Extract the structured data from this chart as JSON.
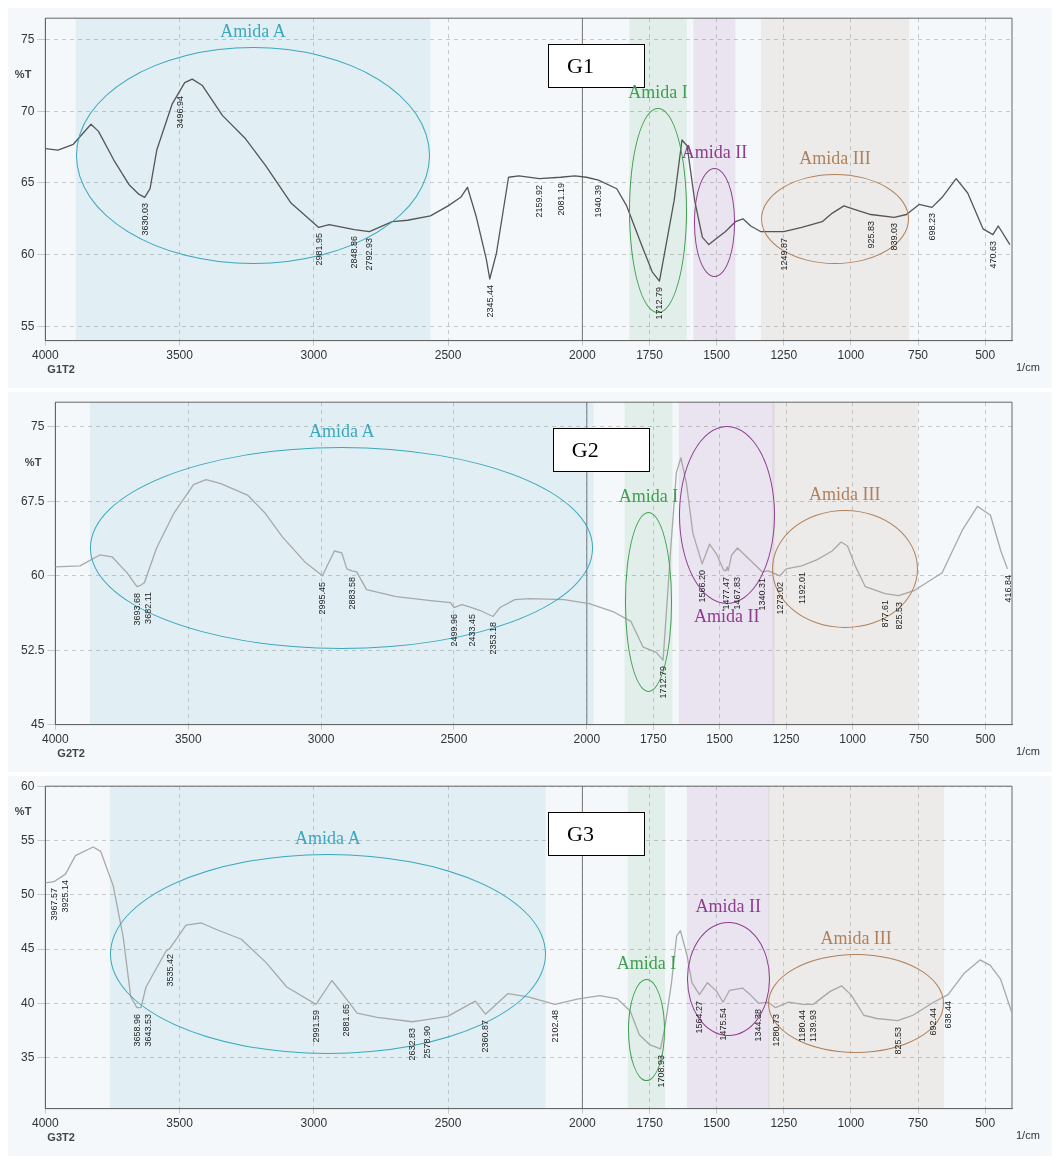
{
  "chart_data": [
    {
      "type": "line",
      "title": "G1",
      "subtitle": "G1T2",
      "xlabel": "1/cm",
      "ylabel": "%T",
      "xlim": [
        4000,
        400
      ],
      "xticks": [
        4000,
        3500,
        3000,
        2500,
        2000,
        1750,
        1500,
        1250,
        1000,
        750,
        500
      ],
      "ylim": [
        54,
        76.5
      ],
      "yticks": [
        55,
        60,
        65,
        70,
        75
      ],
      "grid": true,
      "x": [
        4000,
        3953,
        3896,
        3830,
        3802,
        3745,
        3689,
        3651,
        3630,
        3610,
        3585,
        3528,
        3481,
        3453,
        3415,
        3340,
        3255,
        3179,
        3085,
        2982,
        2943,
        2849,
        2793,
        2708,
        2651,
        2566,
        2500,
        2453,
        2428,
        2396,
        2358,
        2345,
        2320,
        2275,
        2236,
        2160,
        2081,
        2028,
        1985,
        1940,
        1872,
        1835,
        1778,
        1740,
        1713,
        1690,
        1658,
        1629,
        1610,
        1582,
        1553,
        1529,
        1496,
        1468,
        1430,
        1402,
        1373,
        1335,
        1297,
        1250,
        1183,
        1107,
        1069,
        1026,
        993,
        926,
        839,
        793,
        746,
        698,
        660,
        608,
        565,
        508,
        471,
        451,
        408
      ],
      "series": [
        {
          "color": "#555555",
          "values": [
            67.4,
            67.3,
            67.7,
            69.1,
            68.6,
            66.6,
            64.9,
            64.2,
            64.0,
            64.6,
            67.3,
            70.5,
            72.0,
            72.25,
            71.8,
            69.7,
            68.1,
            66.2,
            63.6,
            61.9,
            62.1,
            61.75,
            61.6,
            62.3,
            62.4,
            62.7,
            63.4,
            64.0,
            64.7,
            62.7,
            59.7,
            58.3,
            60.1,
            65.4,
            65.5,
            65.3,
            65.4,
            65.5,
            65.4,
            65.2,
            64.6,
            63.4,
            60.6,
            58.8,
            58.15,
            60.5,
            63.8,
            68.0,
            67.6,
            63.8,
            61.2,
            60.7,
            61.2,
            61.6,
            62.3,
            62.5,
            62.0,
            61.6,
            61.6,
            61.6,
            61.9,
            62.3,
            62.9,
            63.4,
            63.2,
            62.8,
            62.6,
            62.8,
            63.5,
            63.3,
            64.0,
            65.3,
            64.3,
            61.8,
            61.4,
            62.0,
            60.7
          ]
        }
      ],
      "ref_lines": [
        {
          "axis": "x",
          "value": 2000
        }
      ],
      "bands": [
        {
          "axis": "x",
          "from": 3887,
          "to": 2566,
          "label": "Amida A",
          "color": "#3ba7bd"
        },
        {
          "axis": "x",
          "from": 1825,
          "to": 1611,
          "label": "Amida I",
          "color": "#3f9f4f"
        },
        {
          "axis": "x",
          "from": 1586,
          "to": 1430,
          "label": "Amida II",
          "color": "#8e3d8e"
        },
        {
          "axis": "x",
          "from": 1335,
          "to": 783,
          "label": "Amida III",
          "color": "#b0805a"
        }
      ],
      "annotations": [
        {
          "text": "3630.03",
          "x": 3630.03,
          "y": 64.0
        },
        {
          "text": "3496.94",
          "x": 3496.94,
          "y": 71.5
        },
        {
          "text": "2981.95",
          "x": 2981.95,
          "y": 61.9
        },
        {
          "text": "2848.86",
          "x": 2848.86,
          "y": 61.75
        },
        {
          "text": "2792.93",
          "x": 2792.93,
          "y": 61.6
        },
        {
          "text": "2345.44",
          "x": 2345.44,
          "y": 58.3
        },
        {
          "text": "2159.92",
          "x": 2159.92,
          "y": 65.3
        },
        {
          "text": "2081.19",
          "x": 2081.19,
          "y": 65.4
        },
        {
          "text": "1940.39",
          "x": 1940.39,
          "y": 65.3
        },
        {
          "text": "1712.79",
          "x": 1712.79,
          "y": 58.15
        },
        {
          "text": "1249.87",
          "x": 1249.87,
          "y": 61.6
        },
        {
          "text": "925.83",
          "x": 925.83,
          "y": 62.8
        },
        {
          "text": "839.03",
          "x": 839.03,
          "y": 62.6
        },
        {
          "text": "698.23",
          "x": 698.23,
          "y": 63.3
        },
        {
          "text": "470.63",
          "x": 470.63,
          "y": 61.4
        }
      ]
    },
    {
      "type": "line",
      "title": "G2",
      "subtitle": "G2T2",
      "xlabel": "1/cm",
      "ylabel": "%T",
      "xlim": [
        4000,
        400
      ],
      "xticks": [
        4000,
        3500,
        3000,
        2500,
        2000,
        1750,
        1500,
        1250,
        1000,
        750,
        500
      ],
      "ylim": [
        45,
        77.5
      ],
      "yticks": [
        45,
        52.5,
        60,
        67.5,
        75
      ],
      "grid": true,
      "x": [
        4000,
        3907,
        3833,
        3786,
        3730,
        3693,
        3682,
        3665,
        3619,
        3554,
        3480,
        3433,
        3377,
        3275,
        3210,
        3145,
        3061,
        2995,
        2950,
        2922,
        2903,
        2884,
        2866,
        2829,
        2717,
        2587,
        2513,
        2500,
        2470,
        2433,
        2401,
        2353,
        2327,
        2271,
        2216,
        2086,
        1991,
        1902,
        1834,
        1788,
        1740,
        1713,
        1683,
        1663,
        1646,
        1625,
        1601,
        1566,
        1538,
        1510,
        1486,
        1477,
        1472,
        1468,
        1455,
        1433,
        1394,
        1340,
        1317,
        1273,
        1250,
        1192,
        1135,
        1077,
        1043,
        1019,
        990,
        952,
        878,
        826,
        769,
        663,
        587,
        530,
        481,
        442,
        417
      ],
      "series": [
        {
          "color": "#a8a8a8",
          "values": [
            60.9,
            61.0,
            62.1,
            61.9,
            60.3,
            58.9,
            59.0,
            59.3,
            62.8,
            66.3,
            69.2,
            69.7,
            69.3,
            68.1,
            66.3,
            63.9,
            61.4,
            60.0,
            62.5,
            62.3,
            60.7,
            60.5,
            60.4,
            58.6,
            57.9,
            57.5,
            57.3,
            56.8,
            57.1,
            56.8,
            56.5,
            55.9,
            56.8,
            57.6,
            57.7,
            57.6,
            57.2,
            56.4,
            55.4,
            52.8,
            52.3,
            51.5,
            63.2,
            70.4,
            71.9,
            69.3,
            64.3,
            61.2,
            63.2,
            62.1,
            60.6,
            60.5,
            60.9,
            60.5,
            62.1,
            62.8,
            61.8,
            60.4,
            60.5,
            60.0,
            60.7,
            61.0,
            61.6,
            62.5,
            63.4,
            63.0,
            61.0,
            58.9,
            58.2,
            58.0,
            58.5,
            60.3,
            64.6,
            67.0,
            66.1,
            62.5,
            60.7
          ]
        }
      ],
      "ref_lines": [
        {
          "axis": "x",
          "value": 2000
        }
      ],
      "bands": [
        {
          "axis": "x",
          "from": 3870,
          "to": 1975,
          "label": "Amida A",
          "color": "#3ba7bd"
        },
        {
          "axis": "x",
          "from": 1858,
          "to": 1678,
          "label": "Amida I",
          "color": "#3f9f4f"
        },
        {
          "axis": "x",
          "from": 1654,
          "to": 1293,
          "label": "Amida II",
          "color": "#8e3d8e"
        },
        {
          "axis": "x",
          "from": 1303,
          "to": 755,
          "label": "Amida III",
          "color": "#b0805a"
        }
      ],
      "annotations": [
        {
          "text": "3693.68",
          "x": 3693.68,
          "y": 58.9
        },
        {
          "text": "3682.11",
          "x": 3682.11,
          "y": 59.0
        },
        {
          "text": "2995.45",
          "x": 2995.45,
          "y": 60.0
        },
        {
          "text": "2883.58",
          "x": 2883.58,
          "y": 60.5
        },
        {
          "text": "2499.96",
          "x": 2499.96,
          "y": 56.8
        },
        {
          "text": "2433.45",
          "x": 2433.45,
          "y": 56.8
        },
        {
          "text": "2353.18",
          "x": 2353.18,
          "y": 55.9
        },
        {
          "text": "1712.79",
          "x": 1712.79,
          "y": 51.5
        },
        {
          "text": "1566.20",
          "x": 1566.2,
          "y": 61.2
        },
        {
          "text": "1477.47",
          "x": 1477.47,
          "y": 60.5
        },
        {
          "text": "1467.83",
          "x": 1467.83,
          "y": 60.5
        },
        {
          "text": "1340.31",
          "x": 1340.31,
          "y": 60.4
        },
        {
          "text": "1273.02",
          "x": 1273.02,
          "y": 60.0
        },
        {
          "text": "1192.01",
          "x": 1192.01,
          "y": 61.0
        },
        {
          "text": "877.61",
          "x": 877.61,
          "y": 58.2
        },
        {
          "text": "825.53",
          "x": 825.53,
          "y": 58.0
        },
        {
          "text": "416.84",
          "x": 416.84,
          "y": 60.7
        }
      ]
    },
    {
      "type": "line",
      "title": "G3",
      "subtitle": "G3T2",
      "xlabel": "1/cm",
      "ylabel": "%T",
      "xlim": [
        4000,
        400
      ],
      "xticks": [
        4000,
        3500,
        3000,
        2500,
        2000,
        1750,
        1500,
        1250,
        1000,
        750,
        500
      ],
      "ylim": [
        30.3,
        60
      ],
      "yticks": [
        35,
        40,
        45,
        50,
        55,
        60
      ],
      "grid": true,
      "x": [
        4000,
        3968,
        3925,
        3888,
        3822,
        3794,
        3747,
        3710,
        3682,
        3659,
        3644,
        3625,
        3551,
        3535,
        3476,
        3419,
        3363,
        3270,
        3176,
        3101,
        2992,
        2933,
        2904,
        2882,
        2839,
        2764,
        2633,
        2579,
        2502,
        2399,
        2361,
        2277,
        2202,
        2102,
        2015,
        1934,
        1869,
        1822,
        1788,
        1750,
        1709,
        1692,
        1668,
        1649,
        1635,
        1611,
        1592,
        1564,
        1534,
        1500,
        1476,
        1452,
        1404,
        1375,
        1344,
        1308,
        1281,
        1231,
        1180,
        1140,
        1077,
        1034,
        1000,
        952,
        904,
        826,
        769,
        692,
        638,
        577,
        519,
        481,
        442,
        400
      ],
      "series": [
        {
          "color": "#a8a8a8",
          "values": [
            51.1,
            51.2,
            51.9,
            53.6,
            54.4,
            54.0,
            50.8,
            46.1,
            40.6,
            39.6,
            39.6,
            41.5,
            44.8,
            45.1,
            47.2,
            47.4,
            46.8,
            45.9,
            43.7,
            41.5,
            39.9,
            42.1,
            41.2,
            40.5,
            39.1,
            38.7,
            38.3,
            38.5,
            38.8,
            40.2,
            39.0,
            40.9,
            40.6,
            39.9,
            40.4,
            40.7,
            40.4,
            39.3,
            37.1,
            36.2,
            35.8,
            37.9,
            41.9,
            46.2,
            46.7,
            44.5,
            41.9,
            40.8,
            41.9,
            41.1,
            40.1,
            41.2,
            41.4,
            40.8,
            40.0,
            40.1,
            39.6,
            40.1,
            39.9,
            39.9,
            41.1,
            41.6,
            40.8,
            38.9,
            38.6,
            38.4,
            38.9,
            40.1,
            40.8,
            42.8,
            44.0,
            43.5,
            42.2,
            39.1
          ]
        }
      ],
      "ref_lines": [
        {
          "axis": "x",
          "value": 2000
        }
      ],
      "bands": [
        {
          "axis": "x",
          "from": 3760,
          "to": 2137,
          "label": "Amida A",
          "color": "#3ba7bd"
        },
        {
          "axis": "x",
          "from": 1831,
          "to": 1692,
          "label": "Amida I",
          "color": "#3f9f4f"
        },
        {
          "axis": "x",
          "from": 1611,
          "to": 1303,
          "label": "Amida II",
          "color": "#8e3d8e"
        },
        {
          "axis": "x",
          "from": 1308,
          "to": 653,
          "label": "Amida III",
          "color": "#b0805a"
        }
      ],
      "annotations": [
        {
          "text": "3967.57",
          "x": 3967.57,
          "y": 51.2
        },
        {
          "text": "3925.14",
          "x": 3925.14,
          "y": 51.9
        },
        {
          "text": "3658.96",
          "x": 3658.96,
          "y": 39.6
        },
        {
          "text": "3643.53",
          "x": 3643.53,
          "y": 39.6
        },
        {
          "text": "3535.42",
          "x": 3535.42,
          "y": 45.1
        },
        {
          "text": "2991.59",
          "x": 2991.59,
          "y": 39.9
        },
        {
          "text": "2881.65",
          "x": 2881.65,
          "y": 40.5
        },
        {
          "text": "2632.83",
          "x": 2632.83,
          "y": 38.3
        },
        {
          "text": "2578.90",
          "x": 2578.9,
          "y": 38.5
        },
        {
          "text": "2360.87",
          "x": 2360.87,
          "y": 39.0
        },
        {
          "text": "2102.48",
          "x": 2102.48,
          "y": 39.9
        },
        {
          "text": "1708.93",
          "x": 1708.93,
          "y": 35.8
        },
        {
          "text": "1564.27",
          "x": 1564.27,
          "y": 40.8
        },
        {
          "text": "1475.54",
          "x": 1475.54,
          "y": 40.1
        },
        {
          "text": "1344.38",
          "x": 1344.38,
          "y": 40.0
        },
        {
          "text": "1280.73",
          "x": 1280.73,
          "y": 39.6
        },
        {
          "text": "1180.44",
          "x": 1180.44,
          "y": 39.9
        },
        {
          "text": "1139.93",
          "x": 1139.93,
          "y": 39.9
        },
        {
          "text": "825.53",
          "x": 825.53,
          "y": 38.4
        },
        {
          "text": "692.44",
          "x": 692.44,
          "y": 40.1
        },
        {
          "text": "638.44",
          "x": 638.44,
          "y": 40.8
        }
      ]
    }
  ]
}
